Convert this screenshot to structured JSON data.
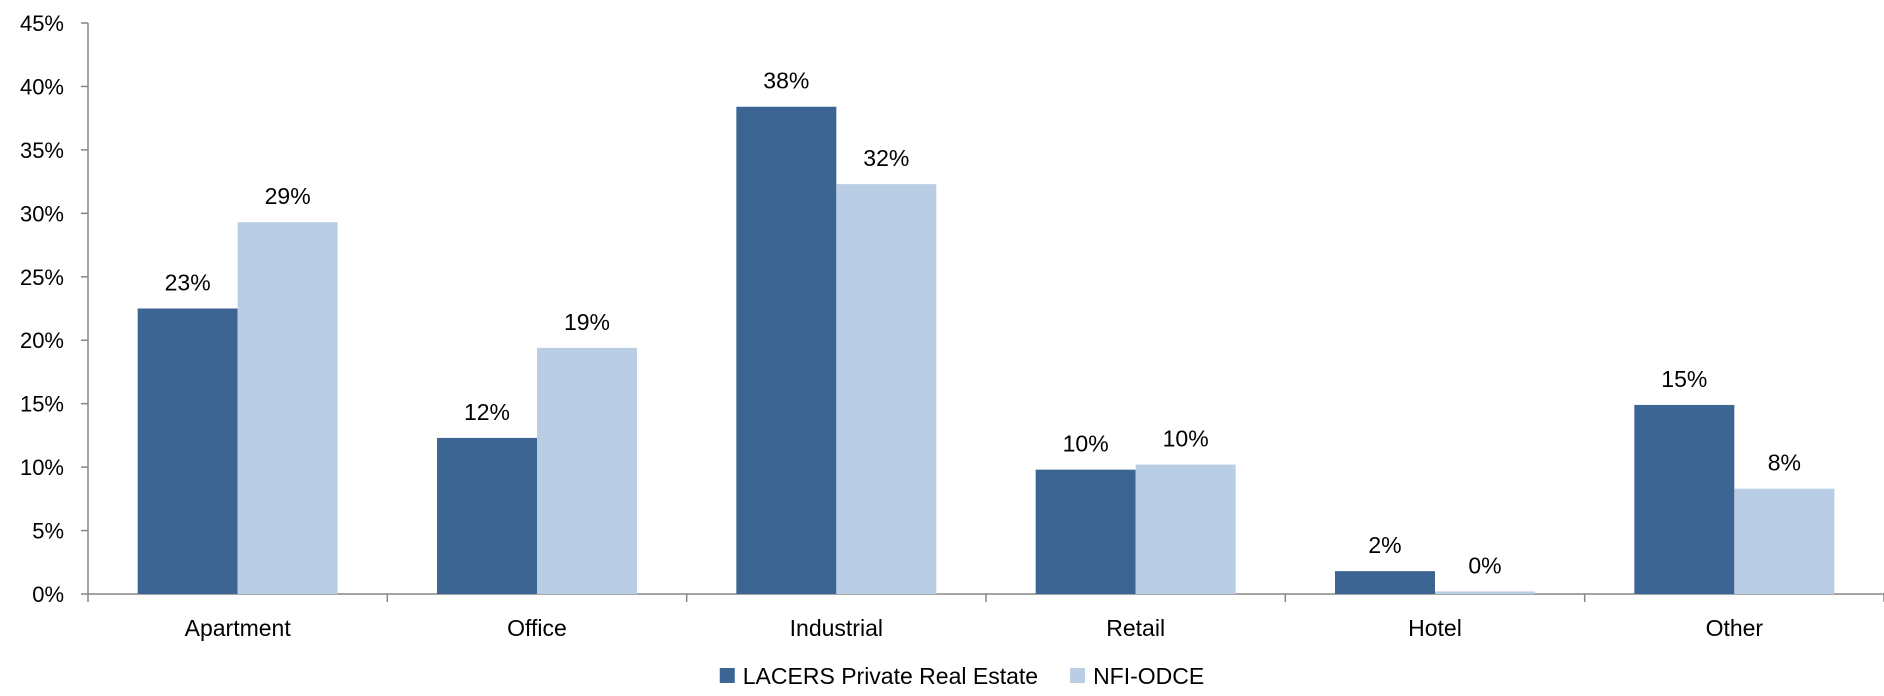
{
  "chart_data": {
    "type": "bar",
    "title": "",
    "xlabel": "",
    "ylabel": "",
    "categories": [
      "Apartment",
      "Office",
      "Industrial",
      "Retail",
      "Hotel",
      "Other"
    ],
    "series": [
      {
        "name": "LACERS Private Real Estate",
        "color": "#3C6594",
        "values": [
          22.5,
          12.3,
          38.4,
          9.8,
          1.8,
          14.9
        ],
        "labels": [
          "23%",
          "12%",
          "38%",
          "10%",
          "2%",
          "15%"
        ]
      },
      {
        "name": "NFI-ODCE",
        "color": "#B9CDE5",
        "values": [
          29.3,
          19.4,
          32.3,
          10.2,
          0.2,
          8.3
        ],
        "labels": [
          "29%",
          "19%",
          "32%",
          "10%",
          "0%",
          "8%"
        ]
      }
    ],
    "ylim": [
      0,
      45
    ],
    "yticks": [
      "0%",
      "5%",
      "10%",
      "15%",
      "20%",
      "25%",
      "30%",
      "35%",
      "40%",
      "45%"
    ],
    "ytick_values": [
      0,
      5,
      10,
      15,
      20,
      25,
      30,
      35,
      40,
      45
    ],
    "grid": false,
    "legend_position": "bottom-center"
  }
}
